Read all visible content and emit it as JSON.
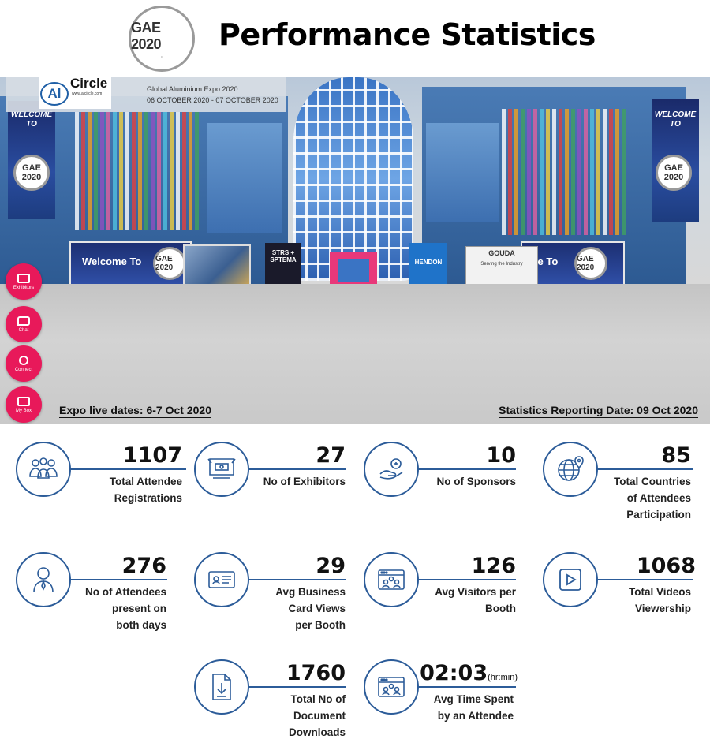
{
  "header": {
    "logo_text": "GAE 2020",
    "title": "Performance Statistics"
  },
  "hero": {
    "brand_logo_text": "Al",
    "brand_name": "Circle",
    "brand_url": "www.alcircle.com",
    "expo_name": "Global Aluminium Expo 2020",
    "expo_dates": "06 OCTOBER 2020 - 07 OCTOBER 2020",
    "welcome_left": "WELCOME TO",
    "welcome_right": "WELCOME TO",
    "badge_text": "GAE 2020",
    "strip_left": "Welcome To",
    "strip_right": "me To",
    "sponsor_1": "STRS + SPTEMA",
    "sponsor_2": "HENDON",
    "sponsor_3": "GOUDA",
    "sponsor_3_sub": "Serving the Industry",
    "side_buttons": [
      "Exhibitors",
      "Chat",
      "Connect",
      "My Box"
    ],
    "live_dates": "Expo live dates: 6-7 Oct 2020",
    "report_date": "Statistics Reporting Date: 09 Oct 2020"
  },
  "stats": [
    {
      "value": "1107",
      "label": [
        "Total Attendee",
        "Registrations"
      ],
      "icon": "group-icon"
    },
    {
      "value": "27",
      "label": [
        "No of Exhibitors"
      ],
      "icon": "booth-icon"
    },
    {
      "value": "10",
      "label": [
        "No of Sponsors"
      ],
      "icon": "hand-coin-icon"
    },
    {
      "value": "85",
      "label": [
        "Total Countries",
        "of Attendees",
        "Participation"
      ],
      "icon": "globe-pin-icon"
    },
    {
      "value": "276",
      "label": [
        "No of Attendees",
        "present on",
        "both days"
      ],
      "icon": "person-icon"
    },
    {
      "value": "29",
      "label": [
        "Avg Business",
        "Card Views",
        "per Booth"
      ],
      "icon": "business-card-icon"
    },
    {
      "value": "126",
      "label": [
        "Avg Visitors per",
        "Booth"
      ],
      "icon": "browser-users-icon"
    },
    {
      "value": "1068",
      "label": [
        "Total Videos",
        "Viewership"
      ],
      "icon": "video-play-icon"
    },
    {
      "value": "1760",
      "label": [
        "Total No of",
        "Document",
        "Downloads"
      ],
      "icon": "document-download-icon"
    },
    {
      "value": "02:03",
      "unit": "(hr:min)",
      "label": [
        "Avg Time Spent",
        "by an Attendee"
      ],
      "icon": "browser-users-icon"
    }
  ],
  "colors": {
    "accent": "#2c5c99",
    "side_button": "#e8195a"
  }
}
